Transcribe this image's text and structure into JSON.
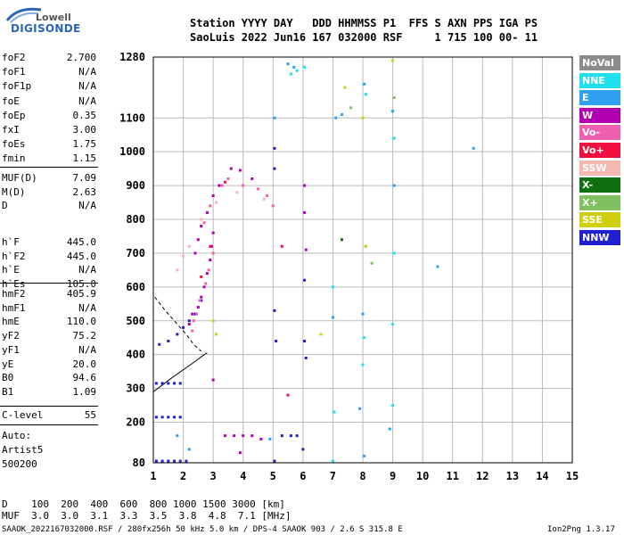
{
  "logo": {
    "line1": "Lowell",
    "line2": "DIGISONDE"
  },
  "header": {
    "line1": "Station YYYY DAY   DDD HHMMSS P1  FFS S AXN PPS IGA PS",
    "line2": "SaoLuis 2022 Jun16 167 032000 RSF     1 715 100 00- 11"
  },
  "params": [
    {
      "k": "foF2",
      "v": "2.700"
    },
    {
      "k": "foF1",
      "v": "N/A"
    },
    {
      "k": "foF1p",
      "v": "N/A"
    },
    {
      "k": "foE",
      "v": "N/A"
    },
    {
      "k": "foEp",
      "v": "0.35"
    },
    {
      "k": "fxI",
      "v": "3.00"
    },
    {
      "k": "foEs",
      "v": "1.75"
    },
    {
      "k": "fmin",
      "v": "1.15"
    },
    {
      "k": "MUF(D)",
      "v": "7.09"
    },
    {
      "k": "M(D)",
      "v": "2.63"
    },
    {
      "k": "D",
      "v": "N/A"
    },
    {
      "k": "h`F",
      "v": "445.0"
    },
    {
      "k": "h`F2",
      "v": "445.0"
    },
    {
      "k": "h`E",
      "v": "N/A"
    },
    {
      "k": "h`Es",
      "v": "105.0"
    },
    {
      "k": "hmF2",
      "v": "405.9"
    },
    {
      "k": "hmF1",
      "v": "N/A"
    },
    {
      "k": "hmE",
      "v": "110.0"
    },
    {
      "k": "yF2",
      "v": "75.2"
    },
    {
      "k": "yF1",
      "v": "N/A"
    },
    {
      "k": "yE",
      "v": "20.0"
    },
    {
      "k": "B0",
      "v": "94.6"
    },
    {
      "k": "B1",
      "v": "1.09"
    },
    {
      "k": "C-level",
      "v": "55"
    }
  ],
  "auto": {
    "l1": "Auto:",
    "l2": "Artist5",
    "l3": "500200"
  },
  "legend": [
    {
      "label": "NoVal",
      "bg": "#8c8c8c",
      "fg": "#ffffff"
    },
    {
      "label": "NNE",
      "bg": "#20e0f0",
      "fg": "#ffffff"
    },
    {
      "label": "E",
      "bg": "#30a0f0",
      "fg": "#ffffff"
    },
    {
      "label": "W",
      "bg": "#b000b0",
      "fg": "#ffffff"
    },
    {
      "label": "Vo-",
      "bg": "#f060b0",
      "fg": "#ffffff"
    },
    {
      "label": "Vo+",
      "bg": "#f01040",
      "fg": "#ffffff"
    },
    {
      "label": "SSW",
      "bg": "#f4b8b0",
      "fg": "#ffffff"
    },
    {
      "label": "X-",
      "bg": "#107010",
      "fg": "#ffffff"
    },
    {
      "label": "X+",
      "bg": "#80c060",
      "fg": "#ffffff"
    },
    {
      "label": "SSE",
      "bg": "#d0d010",
      "fg": "#ffffff"
    },
    {
      "label": "NNW",
      "bg": "#2020d0",
      "fg": "#ffffff"
    }
  ],
  "footer": {
    "dline": "D    100  200  400  600  800 1000 1500 3000 [km]",
    "mline": "MUF  3.0  3.0  3.1  3.3  3.5  3.8  4.8  7.1 [MHz]",
    "file": "SAAOK_2022167032000.RSF / 280fx256h 50 kHz 5.0 km / DPS-4 SAAOK 903 / 2.6 S 315.8 E",
    "version": "Ion2Png 1.3.17"
  },
  "chart_data": {
    "type": "scatter",
    "xlabel": "",
    "ylabel": "",
    "xlim": [
      1,
      15
    ],
    "ylim": [
      80,
      1280
    ],
    "x_ticks": [
      1,
      2,
      3,
      4,
      5,
      6,
      7,
      8,
      9,
      10,
      11,
      12,
      13,
      14,
      15
    ],
    "y_ticks": [
      80,
      200,
      300,
      400,
      500,
      600,
      700,
      800,
      900,
      1000,
      1100,
      1280
    ],
    "grid": true,
    "series": [
      {
        "name": "NNW",
        "color": "#2020d0",
        "points": [
          [
            1.1,
            85
          ],
          [
            1.3,
            85
          ],
          [
            1.5,
            85
          ],
          [
            1.7,
            85
          ],
          [
            1.9,
            85
          ],
          [
            2.1,
            85
          ],
          [
            1.1,
            215
          ],
          [
            1.3,
            215
          ],
          [
            1.5,
            215
          ],
          [
            1.7,
            215
          ],
          [
            1.9,
            215
          ],
          [
            1.1,
            315
          ],
          [
            1.3,
            315
          ],
          [
            1.5,
            315
          ],
          [
            1.7,
            315
          ],
          [
            1.9,
            315
          ],
          [
            1.2,
            430
          ],
          [
            1.5,
            440
          ],
          [
            1.8,
            460
          ],
          [
            2.0,
            480
          ],
          [
            2.2,
            500
          ],
          [
            2.4,
            520
          ],
          [
            2.6,
            560
          ],
          [
            5.05,
            85
          ],
          [
            5.05,
            950
          ],
          [
            5.05,
            1010
          ],
          [
            5.1,
            440
          ],
          [
            6.0,
            120
          ],
          [
            6.05,
            620
          ],
          [
            6.05,
            440
          ],
          [
            6.1,
            390
          ],
          [
            5.3,
            160
          ],
          [
            5.6,
            160
          ],
          [
            5.8,
            160
          ],
          [
            5.05,
            530
          ]
        ]
      },
      {
        "name": "W",
        "color": "#b000b0",
        "points": [
          [
            2.5,
            540
          ],
          [
            2.6,
            570
          ],
          [
            2.7,
            600
          ],
          [
            2.8,
            640
          ],
          [
            2.9,
            680
          ],
          [
            2.95,
            720
          ],
          [
            3.0,
            760
          ],
          [
            2.4,
            700
          ],
          [
            2.5,
            740
          ],
          [
            2.6,
            780
          ],
          [
            2.8,
            820
          ],
          [
            3.0,
            870
          ],
          [
            3.2,
            900
          ],
          [
            3.6,
            950
          ],
          [
            3.9,
            945
          ],
          [
            4.3,
            920
          ],
          [
            2.2,
            490
          ],
          [
            2.3,
            520
          ],
          [
            3.4,
            160
          ],
          [
            3.7,
            160
          ],
          [
            4.0,
            160
          ],
          [
            4.3,
            160
          ],
          [
            4.6,
            150
          ],
          [
            3.0,
            325
          ],
          [
            3.9,
            110
          ],
          [
            6.05,
            900
          ],
          [
            6.05,
            820
          ],
          [
            6.1,
            710
          ]
        ]
      },
      {
        "name": "Vo-",
        "color": "#f060b0",
        "points": [
          [
            2.45,
            520
          ],
          [
            2.55,
            560
          ],
          [
            2.75,
            610
          ],
          [
            2.85,
            650
          ],
          [
            3.0,
            700
          ],
          [
            2.7,
            790
          ],
          [
            2.9,
            840
          ],
          [
            3.3,
            900
          ],
          [
            3.5,
            920
          ],
          [
            4.0,
            900
          ],
          [
            4.5,
            890
          ],
          [
            4.8,
            870
          ],
          [
            5.0,
            840
          ],
          [
            2.3,
            470
          ],
          [
            2.35,
            500
          ]
        ]
      },
      {
        "name": "Vo+",
        "color": "#f01040",
        "points": [
          [
            2.6,
            630
          ],
          [
            2.9,
            720
          ],
          [
            3.4,
            910
          ],
          [
            5.3,
            720
          ],
          [
            5.5,
            280
          ]
        ]
      },
      {
        "name": "SSW",
        "color": "#f4b8b0",
        "points": [
          [
            1.8,
            650
          ],
          [
            2.0,
            690
          ],
          [
            2.2,
            720
          ],
          [
            2.6,
            800
          ],
          [
            3.1,
            850
          ],
          [
            3.8,
            880
          ],
          [
            4.7,
            860
          ]
        ]
      },
      {
        "name": "E",
        "color": "#30a0f0",
        "points": [
          [
            1.8,
            160
          ],
          [
            2.2,
            120
          ],
          [
            4.9,
            150
          ],
          [
            5.5,
            1260
          ],
          [
            5.7,
            1250
          ],
          [
            5.05,
            1100
          ],
          [
            7.1,
            1100
          ],
          [
            7.3,
            1110
          ],
          [
            8.05,
            1200
          ],
          [
            8.1,
            720
          ],
          [
            9.0,
            1120
          ],
          [
            9.05,
            900
          ],
          [
            8.05,
            100
          ],
          [
            8.9,
            180
          ],
          [
            7.0,
            510
          ],
          [
            8.0,
            520
          ],
          [
            7.9,
            240
          ],
          [
            10.5,
            660
          ],
          [
            11.7,
            1010
          ]
        ]
      },
      {
        "name": "NNE",
        "color": "#20e0f0",
        "points": [
          [
            5.6,
            1230
          ],
          [
            5.8,
            1240
          ],
          [
            6.05,
            1250
          ],
          [
            7.0,
            600
          ],
          [
            7.05,
            230
          ],
          [
            8.1,
            1170
          ],
          [
            8.05,
            450
          ],
          [
            9.0,
            250
          ],
          [
            9.05,
            700
          ],
          [
            9.05,
            1040
          ],
          [
            7.0,
            85
          ],
          [
            8.0,
            370
          ],
          [
            9.0,
            490
          ]
        ]
      },
      {
        "name": "SSE",
        "color": "#d0d010",
        "points": [
          [
            3.0,
            500
          ],
          [
            3.1,
            460
          ],
          [
            7.4,
            1190
          ],
          [
            8.0,
            1100
          ],
          [
            9.0,
            1270
          ],
          [
            6.6,
            460
          ],
          [
            8.1,
            720
          ]
        ]
      },
      {
        "name": "X+",
        "color": "#80c060",
        "points": [
          [
            8.3,
            670
          ],
          [
            7.6,
            1130
          ],
          [
            9.05,
            1160
          ]
        ]
      },
      {
        "name": "X-",
        "color": "#107010",
        "points": [
          [
            7.3,
            740
          ]
        ]
      }
    ],
    "lines": [
      {
        "style": "solid",
        "points": [
          [
            1.0,
            290
          ],
          [
            1.3,
            310
          ],
          [
            1.6,
            330
          ],
          [
            2.0,
            355
          ],
          [
            2.4,
            380
          ],
          [
            2.7,
            400
          ],
          [
            2.8,
            405
          ]
        ]
      },
      {
        "style": "dashed",
        "points": [
          [
            1.05,
            570
          ],
          [
            1.4,
            530
          ],
          [
            1.8,
            490
          ],
          [
            2.1,
            460
          ],
          [
            2.35,
            430
          ],
          [
            2.6,
            410
          ]
        ]
      }
    ]
  }
}
